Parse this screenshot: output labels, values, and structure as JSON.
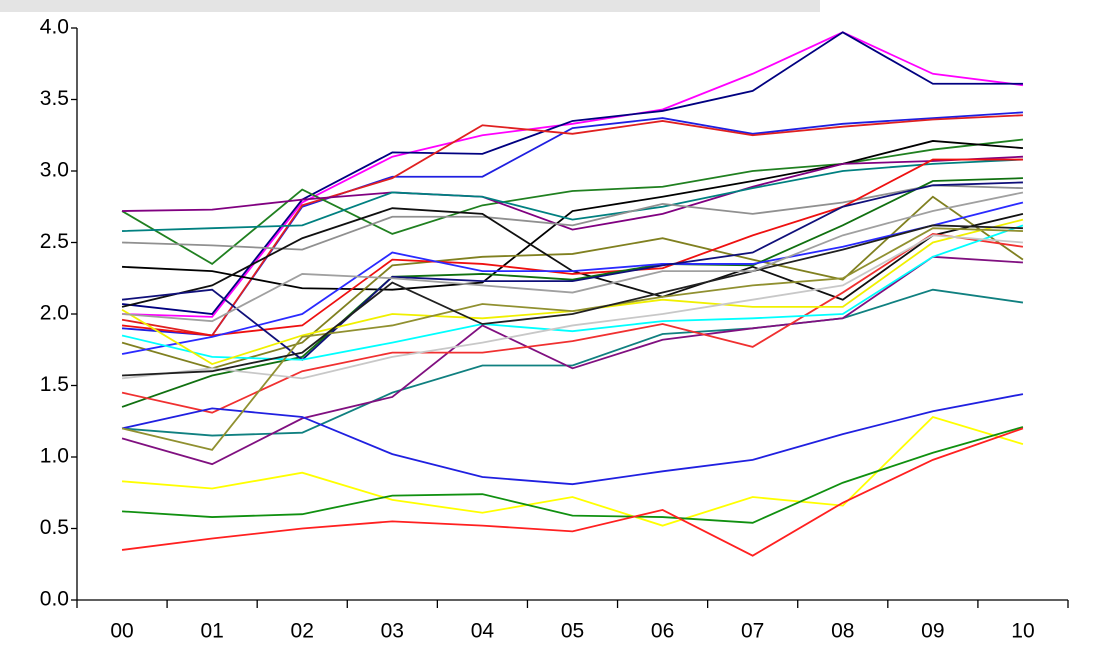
{
  "chart_data": {
    "type": "line",
    "categories": [
      "00",
      "01",
      "02",
      "03",
      "04",
      "05",
      "06",
      "07",
      "08",
      "09",
      "10"
    ],
    "ylim": [
      0,
      4
    ],
    "yticks": [
      {
        "value": 0,
        "label": "0.0"
      },
      0.5,
      {
        "value": 1,
        "label": "1.0"
      },
      1.5,
      {
        "value": 2,
        "label": "2.0"
      },
      2.5,
      {
        "value": 3,
        "label": "3.0"
      },
      3.5,
      {
        "value": 4,
        "label": "4.0"
      }
    ],
    "series": [
      {
        "color": "#ff00ff",
        "values": [
          2.0,
          1.98,
          2.78,
          3.1,
          3.25,
          3.33,
          3.43,
          3.68,
          3.97,
          3.68,
          3.6
        ]
      },
      {
        "color": "#000080",
        "values": [
          2.07,
          2.0,
          2.8,
          3.13,
          3.12,
          3.35,
          3.42,
          3.56,
          3.97,
          3.61,
          3.61
        ]
      },
      {
        "color": "#1f1fe0",
        "values": [
          1.9,
          1.85,
          2.75,
          2.96,
          2.96,
          3.3,
          3.37,
          3.26,
          3.33,
          3.37,
          3.41
        ]
      },
      {
        "color": "#e02020",
        "values": [
          1.96,
          1.85,
          2.76,
          2.95,
          3.32,
          3.26,
          3.35,
          3.25,
          3.31,
          3.36,
          3.39
        ]
      },
      {
        "color": "#208020",
        "values": [
          2.72,
          2.35,
          2.87,
          2.56,
          2.76,
          2.86,
          2.89,
          3.0,
          3.05,
          3.15,
          3.22
        ]
      },
      {
        "color": "#000000",
        "values": [
          2.33,
          2.3,
          2.18,
          2.17,
          2.22,
          2.72,
          2.82,
          2.93,
          3.05,
          3.21,
          3.16
        ]
      },
      {
        "color": "#800080",
        "values": [
          2.72,
          2.73,
          2.8,
          2.85,
          2.82,
          2.59,
          2.7,
          2.89,
          3.05,
          3.07,
          3.1
        ]
      },
      {
        "color": "#008080",
        "values": [
          2.58,
          2.6,
          2.62,
          2.85,
          2.82,
          2.66,
          2.75,
          2.88,
          3.0,
          3.05,
          3.08
        ]
      },
      {
        "color": "#909090",
        "values": [
          2.5,
          2.48,
          2.45,
          2.68,
          2.68,
          2.62,
          2.77,
          2.7,
          2.78,
          2.9,
          2.88
        ]
      },
      {
        "color": "#808020",
        "values": [
          1.8,
          1.62,
          1.8,
          2.34,
          2.4,
          2.42,
          2.53,
          2.38,
          2.24,
          2.82,
          2.38
        ]
      },
      {
        "color": "#101010",
        "values": [
          2.05,
          2.2,
          2.53,
          2.74,
          2.7,
          2.3,
          2.12,
          2.33,
          2.1,
          2.55,
          2.7
        ]
      },
      {
        "color": "#ee1010",
        "values": [
          1.92,
          1.85,
          1.92,
          2.38,
          2.35,
          2.28,
          2.32,
          2.55,
          2.75,
          3.08,
          3.08
        ]
      },
      {
        "color": "#107010",
        "values": [
          1.35,
          1.57,
          1.7,
          2.26,
          2.28,
          2.24,
          2.35,
          2.34,
          2.62,
          2.93,
          2.95
        ]
      },
      {
        "color": "#2a2aff",
        "values": [
          1.72,
          1.84,
          2.0,
          2.43,
          2.3,
          2.3,
          2.35,
          2.35,
          2.47,
          2.62,
          2.78
        ]
      },
      {
        "color": "#10107a",
        "values": [
          2.1,
          2.17,
          1.68,
          2.26,
          2.23,
          2.23,
          2.34,
          2.43,
          2.75,
          2.9,
          2.92
        ]
      },
      {
        "color": "#108080",
        "values": [
          1.2,
          1.15,
          1.17,
          1.45,
          1.64,
          1.64,
          1.86,
          1.9,
          1.97,
          2.17,
          2.08
        ]
      },
      {
        "color": "#801080",
        "values": [
          1.13,
          0.95,
          1.27,
          1.42,
          1.92,
          1.62,
          1.82,
          1.9,
          1.97,
          2.4,
          2.36
        ]
      },
      {
        "color": "#f03030",
        "values": [
          1.45,
          1.31,
          1.6,
          1.73,
          1.73,
          1.81,
          1.93,
          1.77,
          2.15,
          2.56,
          2.47
        ]
      },
      {
        "color": "#2020e0",
        "values": [
          1.2,
          1.34,
          1.28,
          1.02,
          0.86,
          0.81,
          0.9,
          0.98,
          1.16,
          1.32,
          1.44
        ]
      },
      {
        "color": "#ffff00",
        "values": [
          0.83,
          0.78,
          0.89,
          0.7,
          0.61,
          0.72,
          0.52,
          0.72,
          0.66,
          1.28,
          1.09
        ]
      },
      {
        "color": "#109010",
        "values": [
          0.62,
          0.58,
          0.6,
          0.73,
          0.74,
          0.59,
          0.58,
          0.54,
          0.82,
          1.03,
          1.21
        ]
      },
      {
        "color": "#ff2020",
        "values": [
          0.35,
          0.43,
          0.5,
          0.55,
          0.52,
          0.48,
          0.63,
          0.31,
          0.68,
          0.98,
          1.2
        ]
      },
      {
        "color": "#00ffff",
        "values": [
          1.85,
          1.7,
          1.68,
          1.8,
          1.93,
          1.88,
          1.95,
          1.97,
          2.0,
          2.4,
          2.62
        ]
      },
      {
        "color": "#f0f000",
        "values": [
          2.03,
          1.65,
          1.85,
          2.0,
          1.97,
          2.02,
          2.1,
          2.05,
          2.05,
          2.5,
          2.66
        ]
      },
      {
        "color": "#c8c8c8",
        "values": [
          1.55,
          1.62,
          1.55,
          1.7,
          1.8,
          1.92,
          2.0,
          2.1,
          2.2,
          2.55,
          2.5
        ]
      },
      {
        "color": "#909030",
        "values": [
          1.2,
          1.05,
          1.84,
          1.92,
          2.07,
          2.02,
          2.12,
          2.2,
          2.25,
          2.6,
          2.58
        ]
      },
      {
        "color": "#202020",
        "values": [
          1.57,
          1.6,
          1.73,
          2.22,
          1.93,
          2.0,
          2.15,
          2.3,
          2.45,
          2.62,
          2.6
        ]
      },
      {
        "color": "#a0a0a0",
        "values": [
          2.0,
          1.95,
          2.28,
          2.25,
          2.2,
          2.15,
          2.3,
          2.3,
          2.55,
          2.72,
          2.85
        ]
      }
    ]
  }
}
